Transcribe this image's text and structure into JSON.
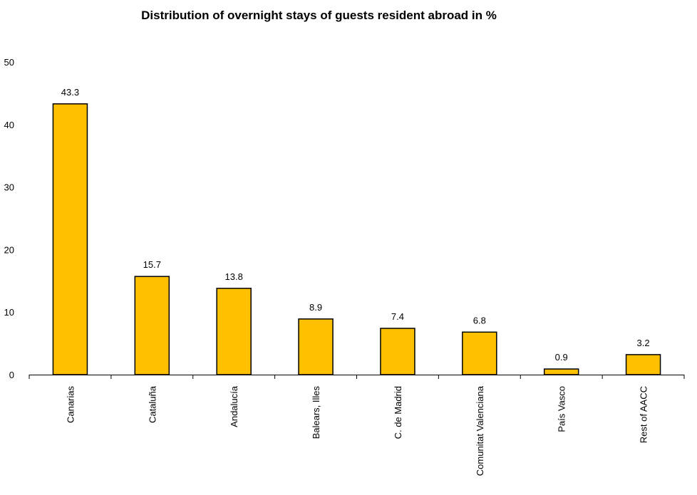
{
  "chart_data": {
    "type": "bar",
    "title": "Distribution of overnight stays of guests resident abroad in %",
    "xlabel": "",
    "ylabel": "",
    "categories": [
      "Canarias",
      "Cataluña",
      "Andalucía",
      "Balears, Illes",
      "C. de Madrid",
      "Comunitat Valenciana",
      "País Vasco",
      "Rest of AACC"
    ],
    "values": [
      43.3,
      15.7,
      13.8,
      8.9,
      7.4,
      6.8,
      0.9,
      3.2
    ],
    "data_labels": [
      "43.3",
      "15.7",
      "13.8",
      "8.9",
      "7.4",
      "6.8",
      "0.9",
      "3.2"
    ],
    "ylim": [
      0,
      50
    ],
    "yticks": [
      0,
      10,
      20,
      30,
      40,
      50
    ],
    "grid": false,
    "legend": "none",
    "bar_color": "#FFC000",
    "bar_edge_color": "#000000"
  }
}
